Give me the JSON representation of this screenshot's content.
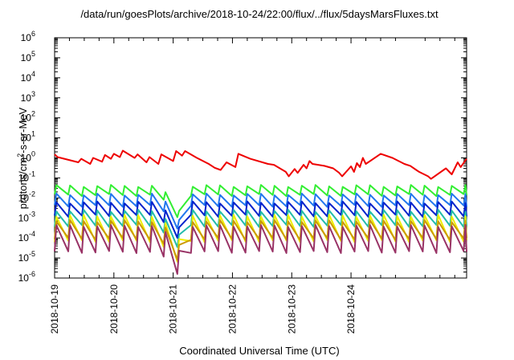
{
  "chart_data": {
    "type": "line",
    "title": "/data/run/goesPlots/archive/2018-10-24/22:00/flux/../flux/5daysMarsFluxes.txt",
    "xlabel": "Coordinated Universal Time (UTC)",
    "ylabel": {
      "pre": "protons/cm",
      "sup": "2",
      "post": "-s-sr-MeV"
    },
    "yscale": "log",
    "ylim": [
      1e-06,
      1000000.0
    ],
    "xlim_days": [
      0,
      6.95
    ],
    "x_ticks": [
      "2018-10-19",
      "2018-10-20",
      "2018-10-21",
      "2018-10-22",
      "2018-10-23",
      "2018-10-24"
    ],
    "y_ticks": [
      {
        "base": "10",
        "exp": "-6"
      },
      {
        "base": "10",
        "exp": "-5"
      },
      {
        "base": "10",
        "exp": "-4"
      },
      {
        "base": "10",
        "exp": "-3"
      },
      {
        "base": "10",
        "exp": "-2"
      },
      {
        "base": "10",
        "exp": "-1"
      },
      {
        "base": "10",
        "exp": "0"
      },
      {
        "base": "10",
        "exp": "1"
      },
      {
        "base": "10",
        "exp": "2"
      },
      {
        "base": "10",
        "exp": "3"
      },
      {
        "base": "10",
        "exp": "4"
      },
      {
        "base": "10",
        "exp": "5"
      },
      {
        "base": "10",
        "exp": "6"
      }
    ],
    "grid": false,
    "sawtooth_period_days": 0.23,
    "series": [
      {
        "color": "#ee0000",
        "pattern": "drift",
        "x": [
          0.0,
          0.05,
          0.4,
          0.45,
          0.6,
          0.65,
          0.8,
          0.85,
          0.95,
          1.0,
          1.1,
          1.15,
          1.35,
          1.4,
          1.55,
          1.6,
          1.75,
          1.8,
          2.0,
          2.05,
          2.15,
          2.2,
          2.4,
          2.6,
          2.7,
          2.8,
          2.9,
          3.05,
          3.1,
          3.3,
          3.6,
          3.7,
          3.9,
          3.95,
          4.05,
          4.1,
          4.2,
          4.25,
          4.3,
          4.35,
          4.55,
          4.7,
          4.8,
          4.85,
          5.0,
          5.05,
          5.1,
          5.15,
          5.2,
          5.25,
          5.5,
          5.7,
          5.9,
          6.0,
          6.1,
          6.15,
          6.3,
          6.35,
          6.6,
          6.7,
          6.8,
          6.85,
          6.95
        ],
        "y": [
          1.5,
          1.1,
          0.6,
          0.9,
          0.5,
          1.0,
          0.65,
          1.4,
          0.9,
          1.6,
          1.1,
          2.3,
          1.0,
          1.5,
          0.6,
          1.1,
          0.5,
          1.5,
          0.7,
          2.2,
          1.3,
          2.2,
          1.0,
          0.5,
          0.32,
          0.25,
          0.6,
          0.35,
          1.6,
          0.9,
          0.5,
          0.45,
          0.2,
          0.12,
          0.28,
          0.18,
          0.45,
          0.3,
          0.7,
          0.5,
          0.4,
          0.3,
          0.18,
          0.12,
          0.38,
          0.2,
          0.55,
          0.35,
          1.0,
          0.5,
          1.6,
          1.0,
          0.5,
          0.4,
          0.25,
          0.2,
          0.12,
          0.09,
          0.3,
          0.15,
          0.6,
          0.35,
          0.9
        ]
      },
      {
        "color": "#33ee33",
        "pattern": "sawtooth",
        "peak": 0.04,
        "trough": 0.014
      },
      {
        "color": "#2277ee",
        "pattern": "sawtooth",
        "peak": 0.015,
        "trough": 0.004
      },
      {
        "color": "#0022cc",
        "pattern": "sawtooth",
        "peak": 0.006,
        "trough": 0.0013
      },
      {
        "color": "#22bbaa",
        "pattern": "sawtooth",
        "peak": 0.0023,
        "trough": 0.0004
      },
      {
        "color": "#eeee00",
        "pattern": "sawtooth",
        "peak": 0.0013,
        "trough": 7e-05
      },
      {
        "color": "#cc9900",
        "pattern": "sawtooth",
        "peak": 0.0007,
        "trough": 9e-05
      },
      {
        "color": "#993366",
        "pattern": "sawtooth",
        "peak": 0.0004,
        "trough": 2e-05
      }
    ],
    "dip": {
      "start": 1.6,
      "bottom": 2.1,
      "end": 2.2,
      "bottom_factor": 0.06
    }
  }
}
